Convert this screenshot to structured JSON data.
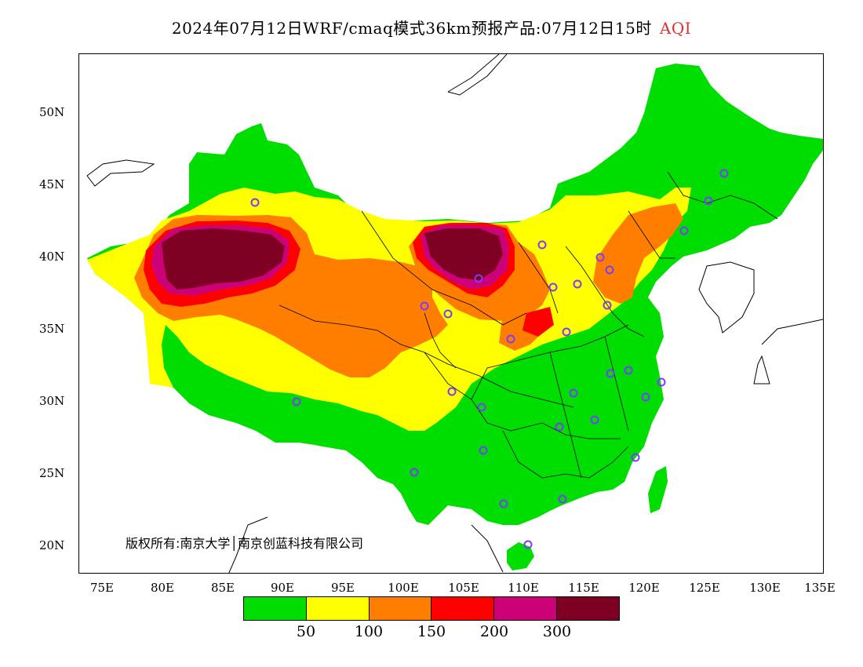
{
  "title": {
    "text": "2024年07月12日WRF/cmaq模式36km预报产品:07月12日15时",
    "product": "AQI"
  },
  "axes": {
    "y_labels": [
      "50N",
      "45N",
      "40N",
      "35N",
      "30N",
      "25N",
      "20N"
    ],
    "x_labels": [
      "75E",
      "80E",
      "85E",
      "90E",
      "95E",
      "100E",
      "105E",
      "110E",
      "115E",
      "120E",
      "125E",
      "130E",
      "135E"
    ]
  },
  "copyright": "版权所有:南京大学│南京创蓝科技有限公司",
  "legend": {
    "colors": [
      "#00dd00",
      "#ffff00",
      "#ff7e00",
      "#ff0000",
      "#cc0077",
      "#7e0023"
    ],
    "labels": [
      "50",
      "100",
      "150",
      "200",
      "300"
    ]
  },
  "colors": {
    "good": "#00dd00",
    "moderate": "#ffff00",
    "usg": "#ff7e00",
    "unhealthy": "#ff0000",
    "very_unhealthy": "#cc0077",
    "hazardous": "#7e0023",
    "station_marker": "#7a3cff"
  }
}
